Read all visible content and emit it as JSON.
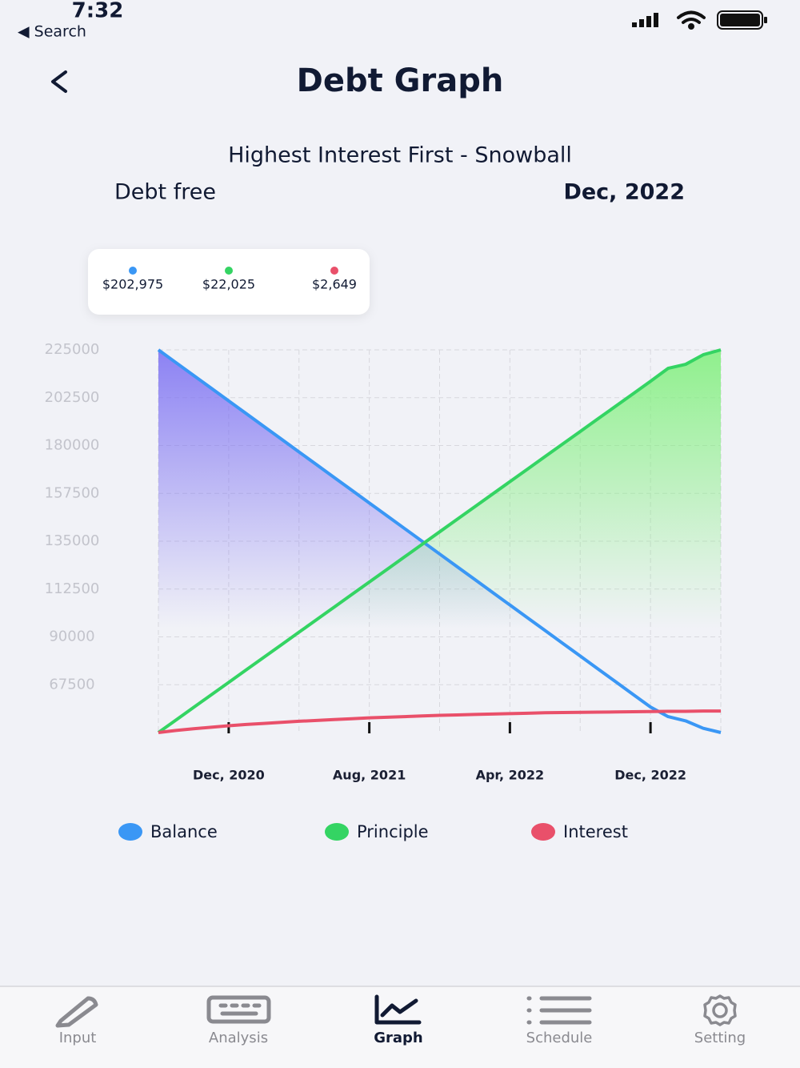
{
  "status_bar": {
    "time": "7:32",
    "back": "◀ Search"
  },
  "header": {
    "title": "Debt Graph"
  },
  "summary": {
    "strategy": "Highest Interest First - Snowball",
    "label": "Debt free",
    "date": "Dec, 2022"
  },
  "tooltip": {
    "values": [
      "$202,975",
      "$22,025",
      "$2,649"
    ]
  },
  "chart_data": {
    "type": "line",
    "categories": [
      null,
      null,
      null,
      null,
      "Dec, 2020",
      null,
      null,
      null,
      null,
      null,
      null,
      null,
      "Aug, 2021",
      null,
      null,
      null,
      null,
      null,
      null,
      null,
      "Apr, 2022",
      null,
      null,
      null,
      null,
      null,
      null,
      null,
      "Dec, 2022",
      null,
      null,
      null,
      null
    ],
    "series": [
      {
        "name": "Balance",
        "color": "#3a97f5",
        "fill": "#7a6ef2",
        "values": [
          225000,
          219000,
          213000,
          207000,
          201000,
          195000,
          189000,
          183000,
          177000,
          171000,
          165000,
          159000,
          153000,
          147000,
          141000,
          135000,
          129000,
          123000,
          117000,
          111000,
          105000,
          99000,
          93000,
          87000,
          81000,
          75000,
          69000,
          63000,
          57000,
          52500,
          50500,
          47000,
          45000
        ]
      },
      {
        "name": "Principle",
        "color": "#34d463",
        "fill": "#7ef07a",
        "values": [
          45000,
          50900,
          56800,
          62700,
          68600,
          74500,
          80400,
          86300,
          92200,
          98100,
          104000,
          109900,
          115800,
          121700,
          127600,
          133500,
          139400,
          145300,
          151200,
          157100,
          163000,
          168900,
          174800,
          180700,
          186600,
          192500,
          198400,
          204300,
          210200,
          216300,
          218200,
          222700,
          225000
        ]
      },
      {
        "name": "Interest",
        "color": "#e9506a",
        "values": [
          45000,
          46000,
          46800,
          47500,
          48200,
          48800,
          49300,
          49800,
          50300,
          50700,
          51100,
          51500,
          51900,
          52200,
          52500,
          52800,
          53100,
          53300,
          53500,
          53700,
          53900,
          54100,
          54300,
          54400,
          54500,
          54600,
          54700,
          54800,
          54900,
          55000,
          55000,
          55100,
          55100
        ]
      }
    ],
    "ylim": [
      45000,
      225000
    ],
    "yticks": [
      225000,
      202500,
      180000,
      157500,
      135000,
      112500,
      90000,
      67500
    ],
    "grid": true
  },
  "tab_bar": {
    "items": [
      "Input",
      "Analysis",
      "Graph",
      "Schedule",
      "Setting"
    ],
    "active": 2
  }
}
